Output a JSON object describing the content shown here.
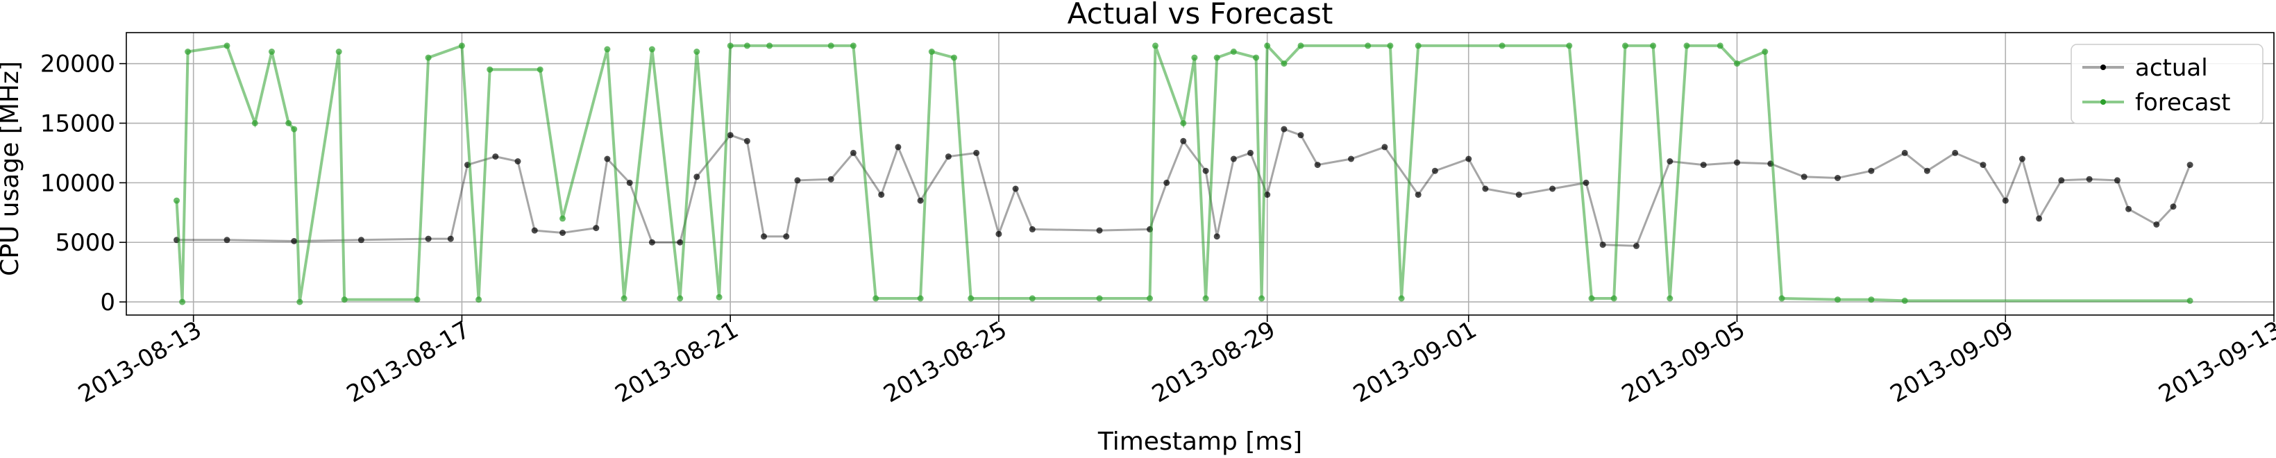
{
  "chart_data": {
    "type": "line",
    "title": "Actual vs Forecast",
    "xlabel": "Timestamp [ms]",
    "ylabel": "CPU usage [MHz]",
    "x_axis": {
      "type": "date",
      "range": [
        "2013-08-12",
        "2013-09-13"
      ],
      "ticks": [
        "2013-08-13",
        "2013-08-17",
        "2013-08-21",
        "2013-08-25",
        "2013-08-29",
        "2013-09-01",
        "2013-09-05",
        "2013-09-09",
        "2013-09-13"
      ]
    },
    "y_axis": {
      "range": [
        -1100,
        22600
      ],
      "ticks": [
        0,
        5000,
        10000,
        15000,
        20000
      ],
      "tick_labels": [
        "0",
        "5000",
        "10000",
        "15000",
        "20000"
      ]
    },
    "grid": true,
    "legend": {
      "position": "top-right"
    },
    "series": [
      {
        "name": "actual",
        "color": "#000000",
        "points": [
          [
            "2013-08-12 18:00",
            5200
          ],
          [
            "2013-08-13 12:00",
            5200
          ],
          [
            "2013-08-14 12:00",
            5100
          ],
          [
            "2013-08-15 12:00",
            5200
          ],
          [
            "2013-08-16 12:00",
            5300
          ],
          [
            "2013-08-16 20:00",
            5300
          ],
          [
            "2013-08-17 02:00",
            11500
          ],
          [
            "2013-08-17 12:00",
            12200
          ],
          [
            "2013-08-17 20:00",
            11800
          ],
          [
            "2013-08-18 02:00",
            6000
          ],
          [
            "2013-08-18 12:00",
            5800
          ],
          [
            "2013-08-19 00:00",
            6200
          ],
          [
            "2013-08-19 04:00",
            12000
          ],
          [
            "2013-08-19 12:00",
            10000
          ],
          [
            "2013-08-19 20:00",
            5000
          ],
          [
            "2013-08-20 06:00",
            5000
          ],
          [
            "2013-08-20 12:00",
            10500
          ],
          [
            "2013-08-21 00:00",
            14000
          ],
          [
            "2013-08-21 06:00",
            13500
          ],
          [
            "2013-08-21 12:00",
            5500
          ],
          [
            "2013-08-21 20:00",
            5500
          ],
          [
            "2013-08-22 00:00",
            10200
          ],
          [
            "2013-08-22 12:00",
            10300
          ],
          [
            "2013-08-22 20:00",
            12500
          ],
          [
            "2013-08-23 06:00",
            9000
          ],
          [
            "2013-08-23 12:00",
            13000
          ],
          [
            "2013-08-23 20:00",
            8500
          ],
          [
            "2013-08-24 06:00",
            12200
          ],
          [
            "2013-08-24 16:00",
            12500
          ],
          [
            "2013-08-25 00:00",
            5700
          ],
          [
            "2013-08-25 06:00",
            9500
          ],
          [
            "2013-08-25 12:00",
            6100
          ],
          [
            "2013-08-26 12:00",
            6000
          ],
          [
            "2013-08-27 06:00",
            6100
          ],
          [
            "2013-08-27 12:00",
            10000
          ],
          [
            "2013-08-27 18:00",
            13500
          ],
          [
            "2013-08-28 02:00",
            11000
          ],
          [
            "2013-08-28 06:00",
            5500
          ],
          [
            "2013-08-28 12:00",
            12000
          ],
          [
            "2013-08-28 18:00",
            12500
          ],
          [
            "2013-08-29 00:00",
            9000
          ],
          [
            "2013-08-29 06:00",
            14500
          ],
          [
            "2013-08-29 12:00",
            14000
          ],
          [
            "2013-08-29 18:00",
            11500
          ],
          [
            "2013-08-30 06:00",
            12000
          ],
          [
            "2013-08-30 18:00",
            13000
          ],
          [
            "2013-08-31 06:00",
            9000
          ],
          [
            "2013-08-31 12:00",
            11000
          ],
          [
            "2013-09-01 00:00",
            12000
          ],
          [
            "2013-09-01 06:00",
            9500
          ],
          [
            "2013-09-01 18:00",
            9000
          ],
          [
            "2013-09-02 06:00",
            9500
          ],
          [
            "2013-09-02 18:00",
            10000
          ],
          [
            "2013-09-03 00:00",
            4800
          ],
          [
            "2013-09-03 12:00",
            4700
          ],
          [
            "2013-09-04 00:00",
            11800
          ],
          [
            "2013-09-04 12:00",
            11500
          ],
          [
            "2013-09-05 00:00",
            11700
          ],
          [
            "2013-09-05 12:00",
            11600
          ],
          [
            "2013-09-06 00:00",
            10500
          ],
          [
            "2013-09-06 12:00",
            10400
          ],
          [
            "2013-09-07 00:00",
            11000
          ],
          [
            "2013-09-07 12:00",
            12500
          ],
          [
            "2013-09-07 20:00",
            11000
          ],
          [
            "2013-09-08 06:00",
            12500
          ],
          [
            "2013-09-08 16:00",
            11500
          ],
          [
            "2013-09-09 00:00",
            8500
          ],
          [
            "2013-09-09 06:00",
            12000
          ],
          [
            "2013-09-09 12:00",
            7000
          ],
          [
            "2013-09-09 20:00",
            10200
          ],
          [
            "2013-09-10 06:00",
            10300
          ],
          [
            "2013-09-10 16:00",
            10200
          ],
          [
            "2013-09-10 20:00",
            7800
          ],
          [
            "2013-09-11 06:00",
            6500
          ],
          [
            "2013-09-11 12:00",
            8000
          ],
          [
            "2013-09-11 18:00",
            11500
          ]
        ]
      },
      {
        "name": "forecast",
        "color": "#2ca02c",
        "points": [
          [
            "2013-08-12 18:00",
            8500
          ],
          [
            "2013-08-12 20:00",
            0
          ],
          [
            "2013-08-12 22:00",
            21000
          ],
          [
            "2013-08-13 12:00",
            21500
          ],
          [
            "2013-08-13 22:00",
            15000
          ],
          [
            "2013-08-14 04:00",
            21000
          ],
          [
            "2013-08-14 10:00",
            15000
          ],
          [
            "2013-08-14 12:00",
            14500
          ],
          [
            "2013-08-14 14:00",
            0
          ],
          [
            "2013-08-15 04:00",
            21000
          ],
          [
            "2013-08-15 06:00",
            200
          ],
          [
            "2013-08-16 08:00",
            200
          ],
          [
            "2013-08-16 12:00",
            20500
          ],
          [
            "2013-08-17 00:00",
            21500
          ],
          [
            "2013-08-17 06:00",
            200
          ],
          [
            "2013-08-17 10:00",
            19500
          ],
          [
            "2013-08-18 04:00",
            19500
          ],
          [
            "2013-08-18 12:00",
            7000
          ],
          [
            "2013-08-19 04:00",
            21200
          ],
          [
            "2013-08-19 10:00",
            300
          ],
          [
            "2013-08-19 20:00",
            21200
          ],
          [
            "2013-08-20 06:00",
            300
          ],
          [
            "2013-08-20 12:00",
            21000
          ],
          [
            "2013-08-20 20:00",
            400
          ],
          [
            "2013-08-21 00:00",
            21500
          ],
          [
            "2013-08-21 06:00",
            21500
          ],
          [
            "2013-08-21 14:00",
            21500
          ],
          [
            "2013-08-22 12:00",
            21500
          ],
          [
            "2013-08-22 20:00",
            21500
          ],
          [
            "2013-08-23 04:00",
            300
          ],
          [
            "2013-08-23 20:00",
            300
          ],
          [
            "2013-08-24 00:00",
            21000
          ],
          [
            "2013-08-24 08:00",
            20500
          ],
          [
            "2013-08-24 14:00",
            300
          ],
          [
            "2013-08-25 12:00",
            300
          ],
          [
            "2013-08-26 12:00",
            300
          ],
          [
            "2013-08-27 06:00",
            300
          ],
          [
            "2013-08-27 08:00",
            21500
          ],
          [
            "2013-08-27 18:00",
            15000
          ],
          [
            "2013-08-27 22:00",
            20500
          ],
          [
            "2013-08-28 02:00",
            300
          ],
          [
            "2013-08-28 06:00",
            20500
          ],
          [
            "2013-08-28 12:00",
            21000
          ],
          [
            "2013-08-28 20:00",
            20500
          ],
          [
            "2013-08-28 22:00",
            300
          ],
          [
            "2013-08-29 00:00",
            21500
          ],
          [
            "2013-08-29 06:00",
            20000
          ],
          [
            "2013-08-29 12:00",
            21500
          ],
          [
            "2013-08-30 12:00",
            21500
          ],
          [
            "2013-08-30 20:00",
            21500
          ],
          [
            "2013-08-31 00:00",
            300
          ],
          [
            "2013-08-31 06:00",
            21500
          ],
          [
            "2013-09-01 12:00",
            21500
          ],
          [
            "2013-09-02 12:00",
            21500
          ],
          [
            "2013-09-02 20:00",
            300
          ],
          [
            "2013-09-03 04:00",
            300
          ],
          [
            "2013-09-03 08:00",
            21500
          ],
          [
            "2013-09-03 18:00",
            21500
          ],
          [
            "2013-09-04 00:00",
            300
          ],
          [
            "2013-09-04 06:00",
            21500
          ],
          [
            "2013-09-04 18:00",
            21500
          ],
          [
            "2013-09-05 00:00",
            20000
          ],
          [
            "2013-09-05 10:00",
            21000
          ],
          [
            "2013-09-05 16:00",
            300
          ],
          [
            "2013-09-06 12:00",
            200
          ],
          [
            "2013-09-07 00:00",
            200
          ],
          [
            "2013-09-07 12:00",
            100
          ],
          [
            "2013-09-11 18:00",
            100
          ]
        ]
      }
    ]
  }
}
